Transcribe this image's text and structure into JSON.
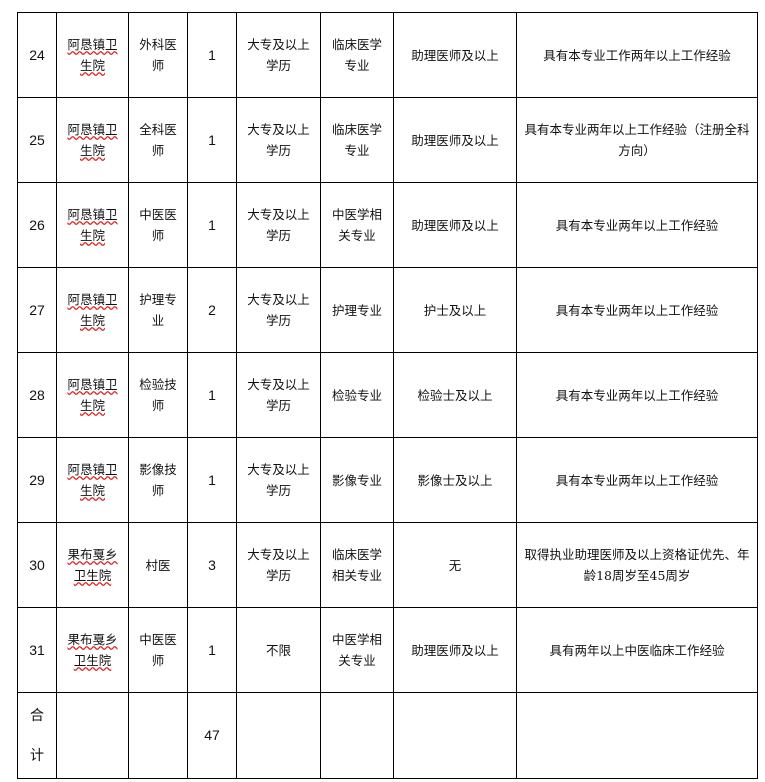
{
  "table": {
    "rows": [
      [
        24,
        "阿恳镇卫生院",
        "外科医师",
        1,
        "大专及以上学历",
        "临床医学专业",
        "助理医师及以上",
        "具有本专业工作两年以上工作经验"
      ],
      [
        25,
        "阿恳镇卫生院",
        "全科医师",
        1,
        "大专及以上学历",
        "临床医学专业",
        "助理医师及以上",
        "具有本专业两年以上工作经验（注册全科方向）"
      ],
      [
        26,
        "阿恳镇卫生院",
        "中医医师",
        1,
        "大专及以上学历",
        "中医学相关专业",
        "助理医师及以上",
        "具有本专业两年以上工作经验"
      ],
      [
        27,
        "阿恳镇卫生院",
        "护理专业",
        2,
        "大专及以上学历",
        "护理专业",
        "护士及以上",
        "具有本专业两年以上工作经验"
      ],
      [
        28,
        "阿恳镇卫生院",
        "检验技师",
        1,
        "大专及以上学历",
        "检验专业",
        "检验士及以上",
        "具有本专业两年以上工作经验"
      ],
      [
        29,
        "阿恳镇卫生院",
        "影像技师",
        1,
        "大专及以上学历",
        "影像专业",
        "影像士及以上",
        "具有本专业两年以上工作经验"
      ],
      [
        30,
        "果布戛乡卫生院",
        "村医",
        3,
        "大专及以上学历",
        "临床医学相关专业",
        "无",
        "取得执业助理医师及以上资格证优先、年龄18周岁至45周岁"
      ],
      [
        31,
        "果布戛乡卫生院",
        "中医医师",
        1,
        "不限",
        "中医学相关专业",
        "助理医师及以上",
        "具有两年以上中医临床工作经验"
      ]
    ],
    "total": {
      "label": "合计",
      "count": 47
    }
  }
}
